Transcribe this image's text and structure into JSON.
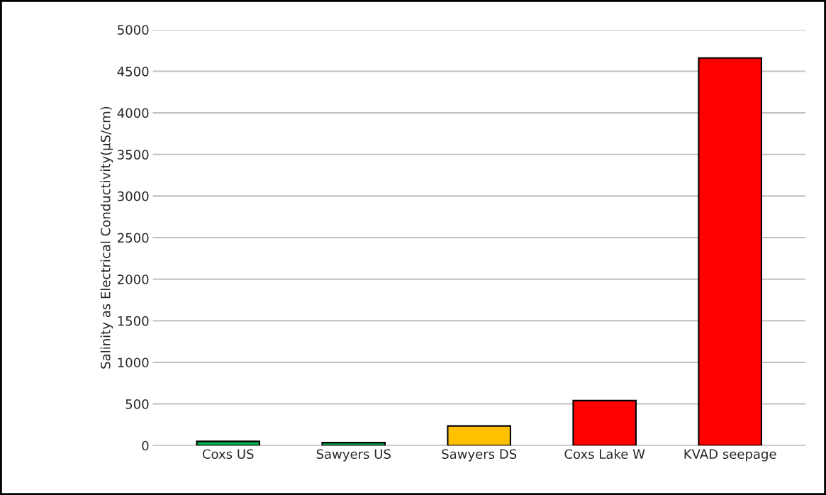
{
  "chart_data": {
    "type": "bar",
    "ylabel": "Salinity as Electrical Conductivity(µS/cm)",
    "categories": [
      "Coxs US",
      "Sawyers US",
      "Sawyers DS",
      "Coxs Lake W",
      "KVAD seepage"
    ],
    "values": [
      50,
      35,
      235,
      540,
      4660
    ],
    "colors": [
      "#00b050",
      "#00b050",
      "#ffc000",
      "#ff0000",
      "#ff0000"
    ],
    "ylim": [
      0,
      5000
    ],
    "yticks": [
      0,
      500,
      1000,
      1500,
      2000,
      2500,
      3000,
      3500,
      4000,
      4500,
      5000
    ],
    "grid": "y",
    "legend": false
  }
}
